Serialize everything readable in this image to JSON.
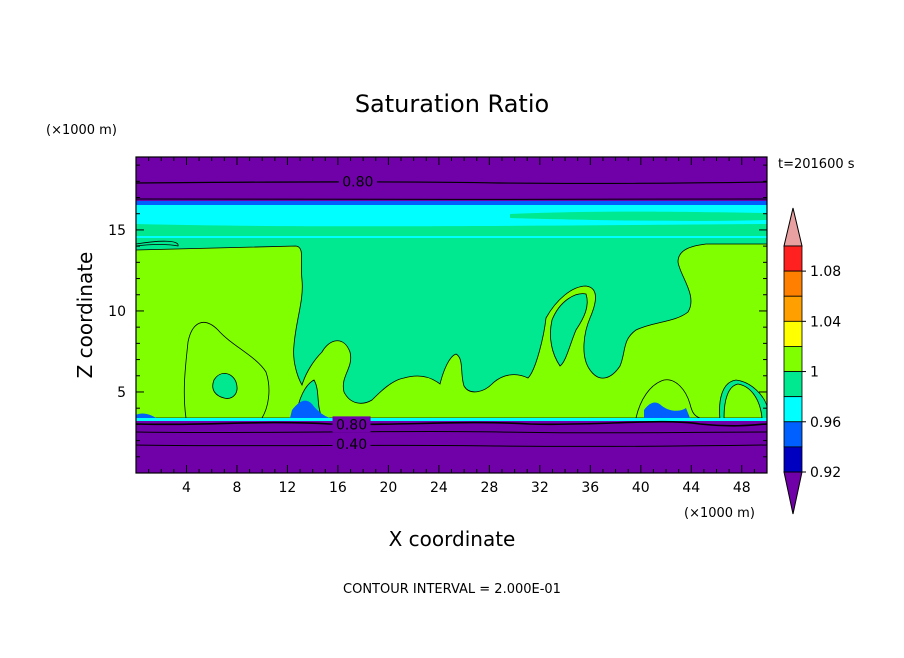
{
  "chart_data": {
    "type": "heatmap",
    "title": "Saturation Ratio",
    "xlabel": "X coordinate",
    "ylabel": "Z coordinate",
    "x_unit": "(×1000 m)",
    "y_unit": "(×1000 m)",
    "time_label": "t=201600 s",
    "footer": "CONTOUR INTERVAL = 2.000E-01",
    "xlim": [
      0,
      50
    ],
    "ylim": [
      0,
      19.5
    ],
    "xticks": [
      4,
      8,
      12,
      16,
      20,
      24,
      28,
      32,
      36,
      40,
      44,
      48
    ],
    "yticks": [
      5,
      10,
      15
    ],
    "contour_labels": [
      {
        "text": "0.80",
        "x": 17.5,
        "z": 18.0
      },
      {
        "text": "0.80",
        "x": 17.0,
        "z": 3.0
      },
      {
        "text": "0.40",
        "x": 17.0,
        "z": 1.8
      }
    ],
    "colorbar": {
      "labels": [
        "1.08",
        "1.04",
        "1",
        "0.96",
        "0.92"
      ],
      "colors": [
        "#e8a0a0",
        "#ff2020",
        "#ff8000",
        "#ffa000",
        "#ffff00",
        "#80ff00",
        "#00e890",
        "#00ffff",
        "#0060ff",
        "#0000c0",
        "#7000a8"
      ]
    },
    "regions": [
      {
        "level": "< 0.92",
        "color": "#7000a8",
        "z_range": [
          0,
          3.3
        ]
      },
      {
        "level": "0.96 - 1",
        "color": "#00e890",
        "z_range": [
          3.3,
          14.8
        ]
      },
      {
        "level": "1 - 1.04",
        "color": "#80ff00",
        "z_range": [
          3.3,
          14.8
        ]
      },
      {
        "level": "0.96 - 1",
        "color": "#00ffff",
        "z_range": [
          15.2,
          17.0
        ]
      },
      {
        "level": "< 0.92",
        "color": "#7000a8",
        "z_range": [
          17.0,
          19.5
        ]
      }
    ]
  }
}
